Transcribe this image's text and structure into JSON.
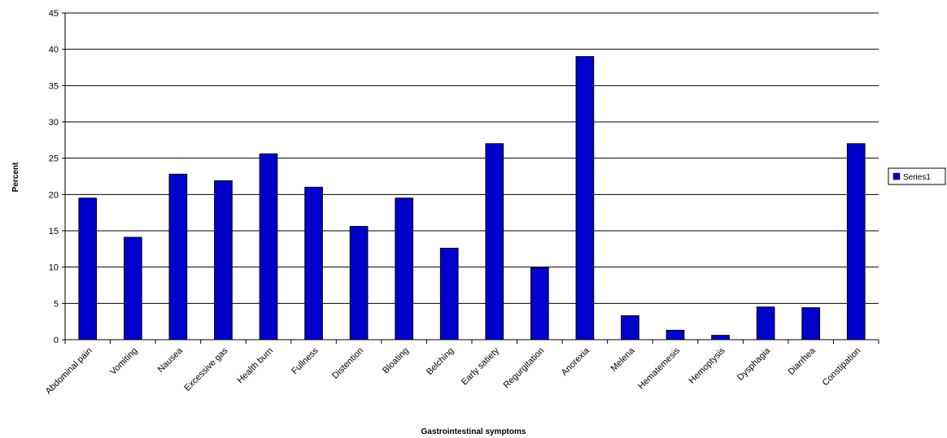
{
  "chart_data": {
    "type": "bar",
    "categories": [
      "Abdominal pain",
      "Vomiting",
      "Nausea",
      "Excessive gas",
      "Health burn",
      "Fullness",
      "Distention",
      "Bloating",
      "Belching",
      "Early satiety",
      "Regurgitation",
      "Anorexia",
      "Melena",
      "Hematemesis",
      "Hemoptysis",
      "Dysphagia",
      "Diarrhea",
      "Constipation"
    ],
    "series": [
      {
        "name": "Series1",
        "values": [
          19.5,
          14.1,
          22.8,
          21.9,
          25.6,
          21.0,
          15.6,
          19.5,
          12.6,
          27.0,
          9.9,
          39.0,
          3.3,
          1.3,
          0.6,
          4.5,
          4.4,
          27.0
        ],
        "color": "#0000CC"
      }
    ],
    "xlabel": "Gastrointestinal symptoms",
    "ylabel": "Percent",
    "ylim": [
      0,
      45
    ],
    "yticks": [
      0,
      5,
      10,
      15,
      20,
      25,
      30,
      35,
      40,
      45
    ],
    "grid": true,
    "legend": "right"
  }
}
